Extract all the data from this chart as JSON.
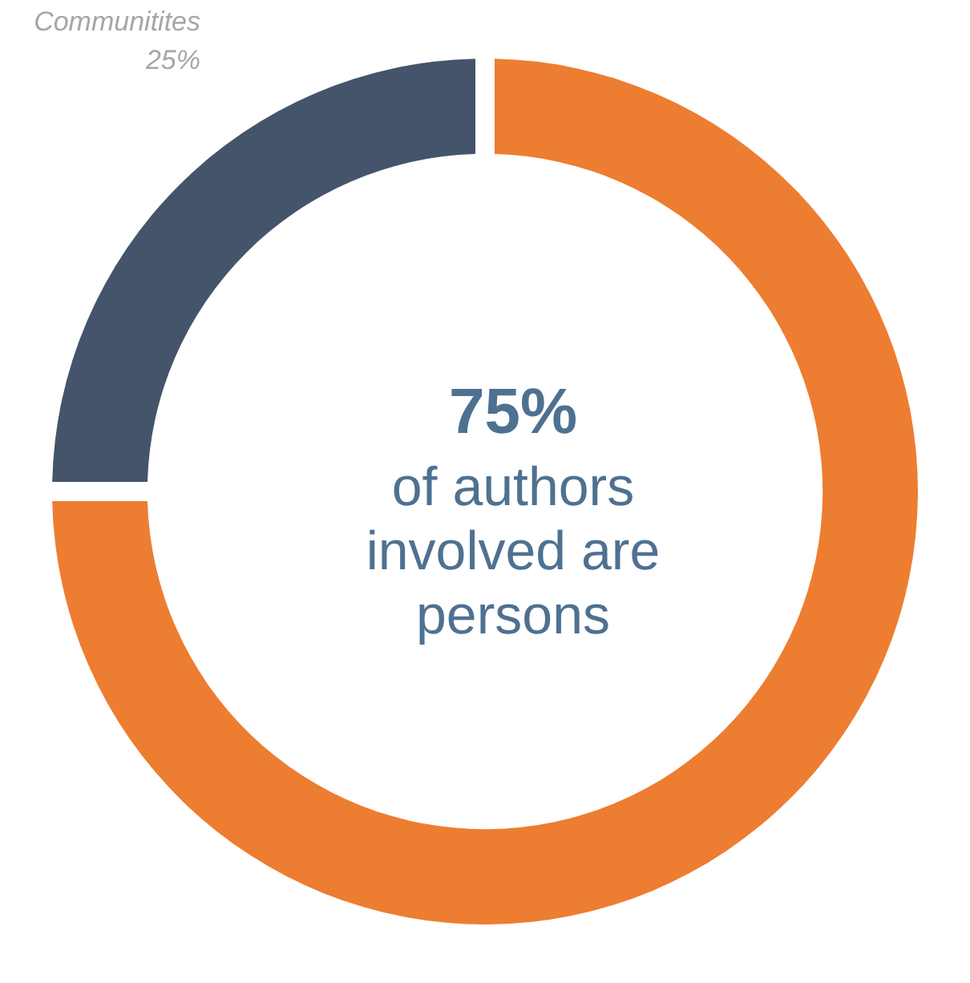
{
  "chart_data": {
    "type": "donut",
    "categories": [
      "Communitites",
      null
    ],
    "values": [
      25,
      75
    ],
    "colors": [
      "#44546a",
      "#ed7d31"
    ],
    "value_labels": [
      "25%",
      null
    ],
    "annotations": [
      "75%",
      "of authors involved are persons"
    ]
  }
}
